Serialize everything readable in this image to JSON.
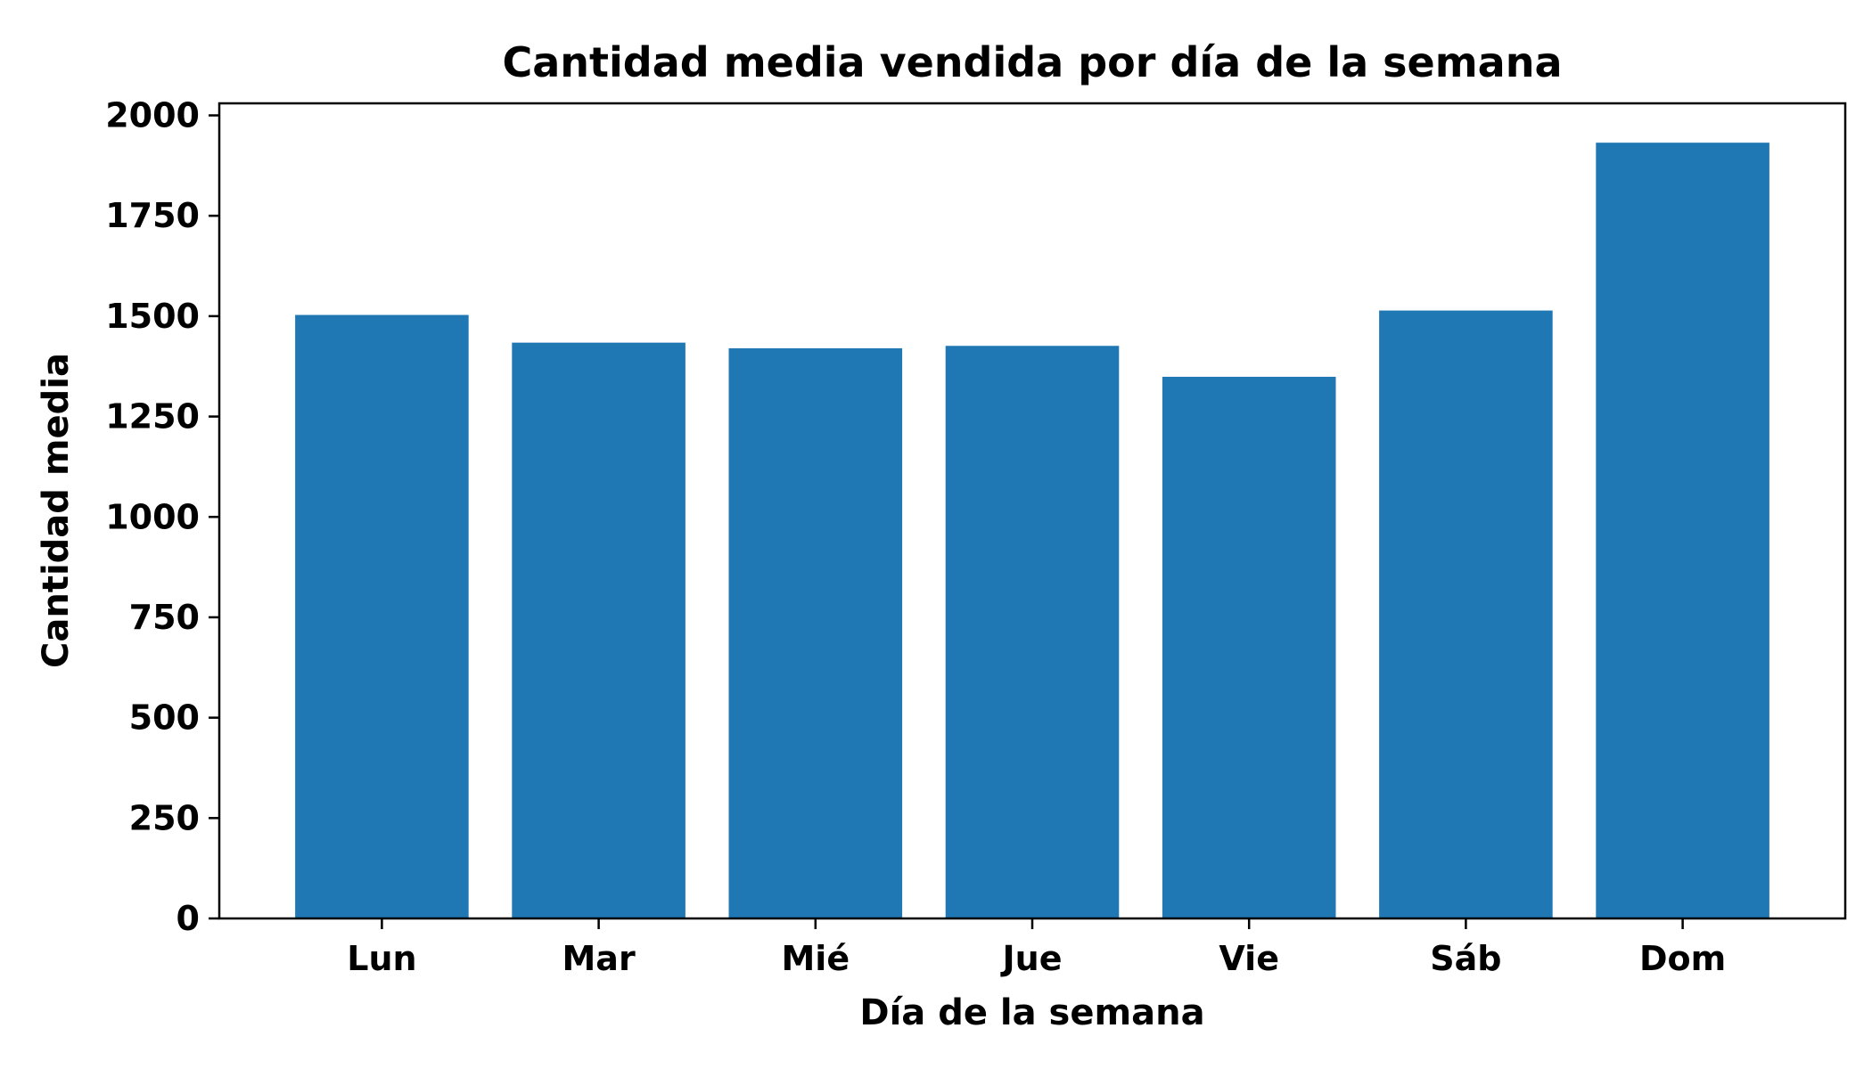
{
  "chart_data": {
    "type": "bar",
    "title": "Cantidad media vendida por día de la semana",
    "xlabel": "Día de la semana",
    "ylabel": "Cantidad media",
    "categories": [
      "Lun",
      "Mar",
      "Mié",
      "Jue",
      "Vie",
      "Sáb",
      "Dom"
    ],
    "values": [
      1503,
      1434,
      1420,
      1426,
      1349,
      1514,
      1932
    ],
    "ylim": [
      0,
      2030
    ],
    "yticks": [
      0,
      250,
      500,
      750,
      1000,
      1250,
      1500,
      1750,
      2000
    ],
    "bar_color": "#1f77b4",
    "grid": false,
    "legend": "none"
  }
}
